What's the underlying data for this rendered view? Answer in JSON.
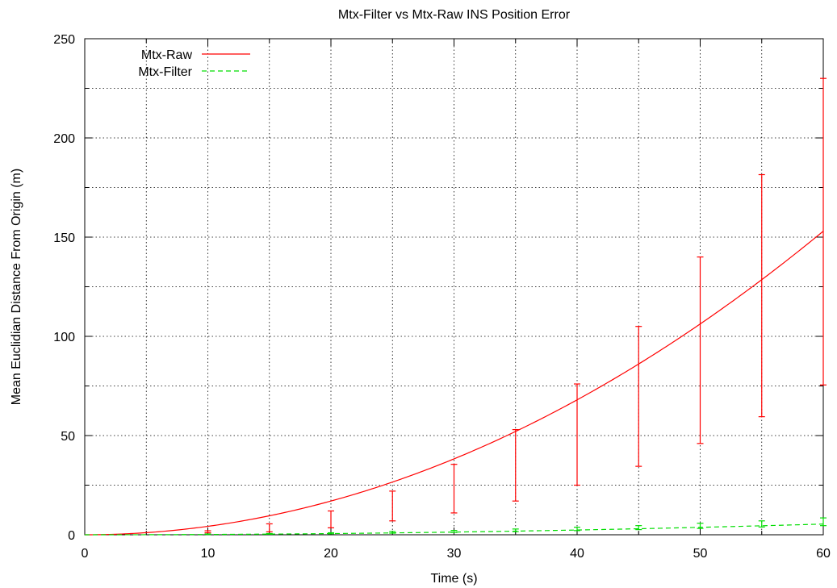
{
  "chart_data": {
    "type": "line",
    "title": "Mtx-Filter vs Mtx-Raw INS Position Error",
    "xlabel": "Time (s)",
    "ylabel": "Mean Euclidian Distance From Origin (m)",
    "xlim": [
      0,
      60
    ],
    "ylim": [
      0,
      250
    ],
    "x_major_ticks": [
      0,
      10,
      20,
      30,
      40,
      50,
      60
    ],
    "x_tick_labels": [
      "0",
      "10",
      "20",
      "30",
      "40",
      "50",
      "60"
    ],
    "x_minor_ticks": [
      5,
      15,
      25,
      35,
      45,
      55
    ],
    "y_major_ticks": [
      0,
      50,
      100,
      150,
      200,
      250
    ],
    "y_tick_labels": [
      "0",
      "50",
      "100",
      "150",
      "200",
      "250"
    ],
    "y_minor_ticks": [
      25,
      75,
      125,
      175,
      225
    ],
    "grid": true,
    "legend_position": "top-left",
    "series": [
      {
        "name": "Mtx-Raw",
        "color": "#ff0000",
        "style": "solid",
        "curve": "quadratic",
        "coefficient": 0.0425,
        "errorbars": [
          {
            "x": 10,
            "low": 1.0,
            "high": 2.0
          },
          {
            "x": 15,
            "low": 1.5,
            "high": 5.5
          },
          {
            "x": 20,
            "low": 3.5,
            "high": 12.0
          },
          {
            "x": 25,
            "low": 7.0,
            "high": 22.0
          },
          {
            "x": 30,
            "low": 11.0,
            "high": 35.5
          },
          {
            "x": 35,
            "low": 17.0,
            "high": 53.0
          },
          {
            "x": 40,
            "low": 25.0,
            "high": 76.0
          },
          {
            "x": 45,
            "low": 34.5,
            "high": 105.0
          },
          {
            "x": 50,
            "low": 46.0,
            "high": 140.0
          },
          {
            "x": 55,
            "low": 59.5,
            "high": 181.5
          },
          {
            "x": 60,
            "low": 75.5,
            "high": 230.0
          }
        ]
      },
      {
        "name": "Mtx-Filter",
        "color": "#00dd00",
        "style": "dashed",
        "curve": "quadratic",
        "coefficient": 0.0015,
        "errorbars": [
          {
            "x": 10,
            "low": 0.2,
            "high": 0.4
          },
          {
            "x": 15,
            "low": 0.3,
            "high": 0.6
          },
          {
            "x": 20,
            "low": 0.5,
            "high": 1.0
          },
          {
            "x": 25,
            "low": 0.8,
            "high": 1.6
          },
          {
            "x": 30,
            "low": 1.2,
            "high": 2.2
          },
          {
            "x": 35,
            "low": 1.6,
            "high": 2.9
          },
          {
            "x": 40,
            "low": 2.1,
            "high": 3.8
          },
          {
            "x": 45,
            "low": 2.6,
            "high": 4.6
          },
          {
            "x": 50,
            "low": 3.2,
            "high": 5.8
          },
          {
            "x": 55,
            "low": 3.9,
            "high": 7.0
          },
          {
            "x": 60,
            "low": 4.6,
            "high": 8.5
          }
        ]
      }
    ]
  }
}
